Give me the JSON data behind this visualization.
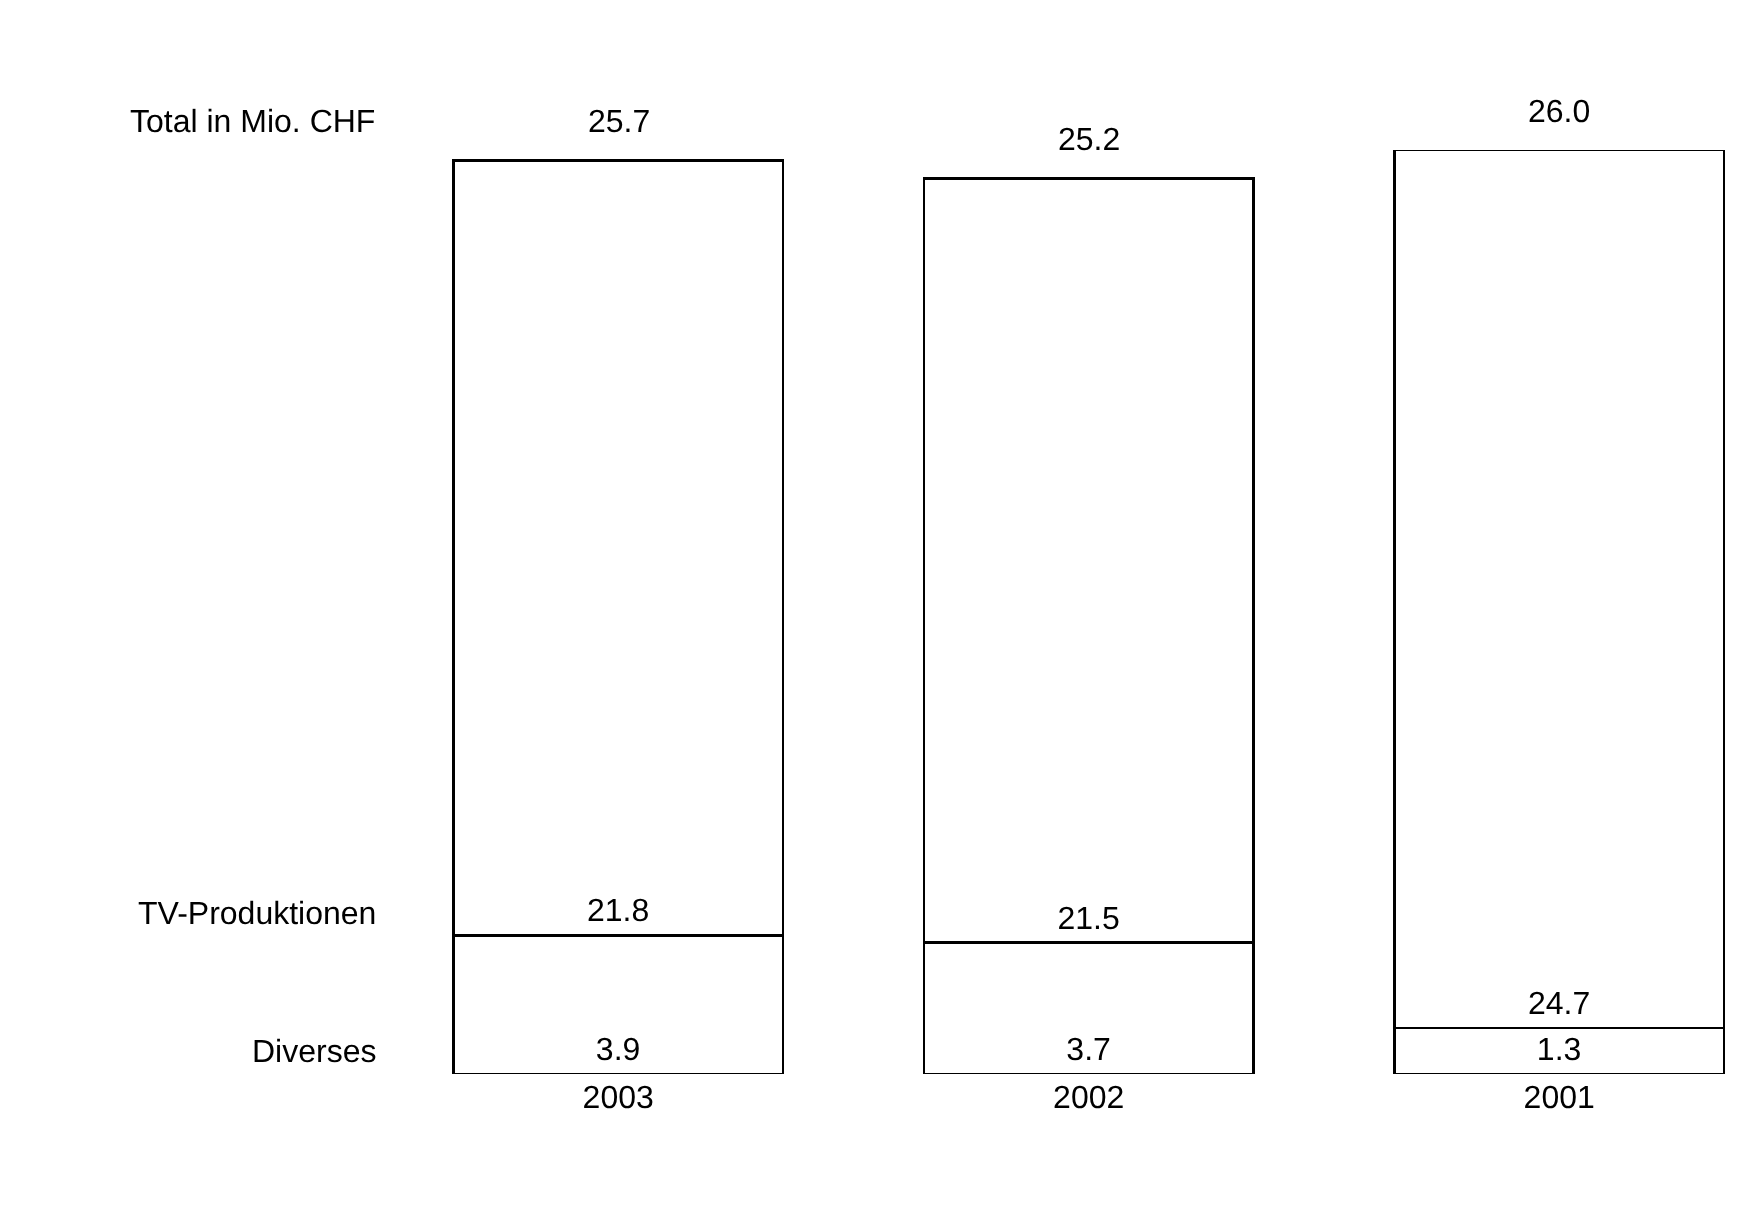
{
  "chart_data": {
    "type": "bar",
    "stacked": true,
    "categories": [
      "2003",
      "2002",
      "2001"
    ],
    "series": [
      {
        "name": "Diverses",
        "color": "#ffffff",
        "values": [
          3.9,
          3.7,
          1.3
        ]
      },
      {
        "name": "TV-Produktionen",
        "color": "#ffffff",
        "values": [
          21.8,
          21.5,
          24.7
        ]
      }
    ],
    "totals": [
      "25.7",
      "25.2",
      "26.0"
    ],
    "annotations": [
      "Total in Mio. CHF"
    ],
    "data_labels": true,
    "legend": false
  }
}
